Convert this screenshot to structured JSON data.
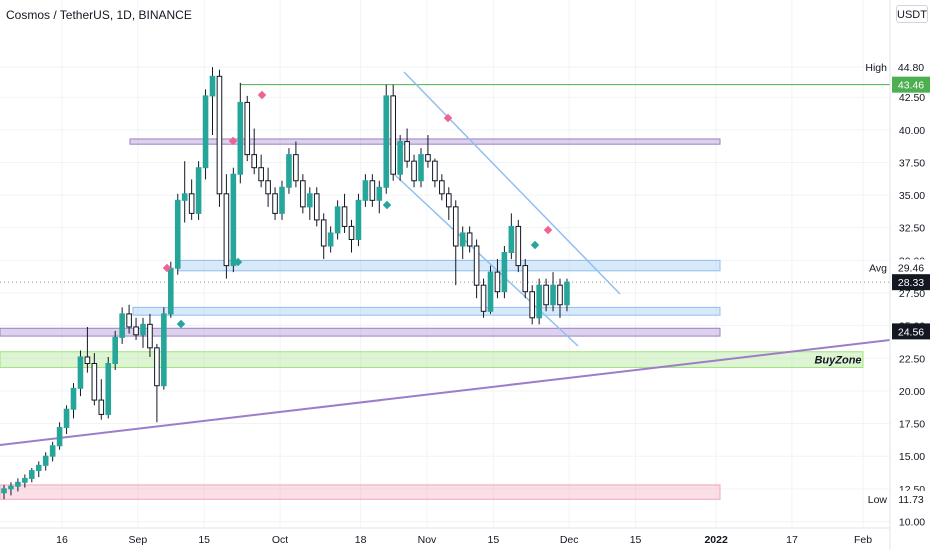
{
  "header": {
    "title": "Cosmos / TetherUS, 1D, BINANCE",
    "currency": "USDT"
  },
  "chart_data": {
    "type": "candlestick",
    "ylim": [
      9.5,
      47.8
    ],
    "y_ticks": [
      "10.00",
      "12.50",
      "15.00",
      "17.50",
      "20.00",
      "22.50",
      "25.00",
      "27.50",
      "30.00",
      "32.50",
      "35.00",
      "37.50",
      "40.00",
      "42.50",
      "44.80"
    ],
    "x_ticks": [
      "16",
      "Sep",
      "15",
      "Oct",
      "18",
      "Nov",
      "15",
      "Dec",
      "15",
      "2022",
      "17",
      "Feb"
    ],
    "x_tick_dates": [
      "2021-08-16",
      "2021-09-01",
      "2021-09-15",
      "2021-10-01",
      "2021-10-18",
      "2021-11-01",
      "2021-11-15",
      "2021-12-01",
      "2021-12-15",
      "2022-01-01",
      "2022-01-17",
      "2022-02-01"
    ],
    "markers": [
      {
        "label": "High",
        "value": "44.80"
      },
      {
        "label": "",
        "value": "43.46",
        "color": "#4caf50"
      },
      {
        "label": "Avg",
        "value": "29.46"
      },
      {
        "label": "",
        "value": "28.33",
        "color": "#131722"
      },
      {
        "label": "",
        "value": "24.56",
        "color": "#131722"
      },
      {
        "label": "Low",
        "value": "11.73"
      }
    ],
    "zones": [
      {
        "from": 38.9,
        "to": 39.3,
        "color": "#9c7dc9"
      },
      {
        "from": 29.2,
        "to": 30.0,
        "color": "#90bff0"
      },
      {
        "from": 25.8,
        "to": 26.4,
        "color": "#90bff0"
      },
      {
        "from": 24.2,
        "to": 24.8,
        "color": "#9c7dc9"
      },
      {
        "from": 21.8,
        "to": 23.0,
        "color": "#9fe17e"
      },
      {
        "from": 11.7,
        "to": 12.8,
        "color": "#f4a3b8"
      }
    ],
    "annotation": "BuyZone",
    "series": [
      {
        "ohlc": [
          [
            12.2,
            12.8,
            11.7,
            12.5
          ],
          [
            12.5,
            13.0,
            12.0,
            12.7
          ],
          [
            12.7,
            13.3,
            12.3,
            13.0
          ],
          [
            13.0,
            13.6,
            12.6,
            13.3
          ],
          [
            13.3,
            14.1,
            13.0,
            13.9
          ],
          [
            13.9,
            14.6,
            13.4,
            14.3
          ],
          [
            14.3,
            15.3,
            13.9,
            15.0
          ],
          [
            15.0,
            16.1,
            14.6,
            15.8
          ],
          [
            15.8,
            17.6,
            15.5,
            17.2
          ],
          [
            17.2,
            18.9,
            16.7,
            18.6
          ],
          [
            18.6,
            20.6,
            17.9,
            20.2
          ],
          [
            20.2,
            23.1,
            19.6,
            22.6
          ],
          [
            22.6,
            24.9,
            21.4,
            22.1
          ],
          [
            22.1,
            22.9,
            18.9,
            19.3
          ],
          [
            19.3,
            20.9,
            17.8,
            18.2
          ],
          [
            18.2,
            22.6,
            17.9,
            22.1
          ],
          [
            22.1,
            24.6,
            21.6,
            24.1
          ],
          [
            24.1,
            26.4,
            23.6,
            25.9
          ],
          [
            25.9,
            26.6,
            24.4,
            24.9
          ],
          [
            24.9,
            25.6,
            23.9,
            24.3
          ],
          [
            24.3,
            25.6,
            23.3,
            25.1
          ],
          [
            25.1,
            25.9,
            22.6,
            23.3
          ],
          [
            23.3,
            23.6,
            17.6,
            20.4
          ],
          [
            20.4,
            26.4,
            20.1,
            25.9
          ],
          [
            25.9,
            29.9,
            25.6,
            29.4
          ],
          [
            29.4,
            35.1,
            28.9,
            34.6
          ],
          [
            34.6,
            37.6,
            32.9,
            35.1
          ],
          [
            35.1,
            36.2,
            33.1,
            33.6
          ],
          [
            33.6,
            37.6,
            33.1,
            37.1
          ],
          [
            37.1,
            43.1,
            36.2,
            42.6
          ],
          [
            42.6,
            44.8,
            39.6,
            44.1
          ],
          [
            44.1,
            44.6,
            34.1,
            35.1
          ],
          [
            35.1,
            36.6,
            28.6,
            29.6
          ],
          [
            29.6,
            37.1,
            29.1,
            36.6
          ],
          [
            36.6,
            43.6,
            35.9,
            42.1
          ],
          [
            42.1,
            42.6,
            37.6,
            38.1
          ],
          [
            38.1,
            40.1,
            36.6,
            37.1
          ],
          [
            37.1,
            38.1,
            35.6,
            36.1
          ],
          [
            36.1,
            37.1,
            34.1,
            35.1
          ],
          [
            35.1,
            35.6,
            33.1,
            33.6
          ],
          [
            33.6,
            36.1,
            33.1,
            35.6
          ],
          [
            35.6,
            38.6,
            35.1,
            38.1
          ],
          [
            38.1,
            39.1,
            35.6,
            36.1
          ],
          [
            36.1,
            36.6,
            33.6,
            34.1
          ],
          [
            34.1,
            35.6,
            33.1,
            35.1
          ],
          [
            35.1,
            35.6,
            32.6,
            33.1
          ],
          [
            33.1,
            33.6,
            30.1,
            31.1
          ],
          [
            31.1,
            32.6,
            30.6,
            32.1
          ],
          [
            32.1,
            34.6,
            31.6,
            34.1
          ],
          [
            34.1,
            35.1,
            32.1,
            32.6
          ],
          [
            32.6,
            33.1,
            30.6,
            31.6
          ],
          [
            31.6,
            35.1,
            31.1,
            34.6
          ],
          [
            34.6,
            36.6,
            34.1,
            36.1
          ],
          [
            36.1,
            36.6,
            34.1,
            34.6
          ],
          [
            34.6,
            36.1,
            33.6,
            35.6
          ],
          [
            35.6,
            43.46,
            35.1,
            42.6
          ],
          [
            42.6,
            43.46,
            36.1,
            36.6
          ],
          [
            36.6,
            39.6,
            36.1,
            39.1
          ],
          [
            39.1,
            40.1,
            37.1,
            37.6
          ],
          [
            37.6,
            38.1,
            35.6,
            36.1
          ],
          [
            36.1,
            38.6,
            35.6,
            38.1
          ],
          [
            38.1,
            39.6,
            37.1,
            37.6
          ],
          [
            37.6,
            37.8,
            35.6,
            36.1
          ],
          [
            36.1,
            36.6,
            34.6,
            35.1
          ],
          [
            35.1,
            35.6,
            33.1,
            34.1
          ],
          [
            34.1,
            34.6,
            28.1,
            31.1
          ],
          [
            31.1,
            32.6,
            30.1,
            32.1
          ],
          [
            32.1,
            32.6,
            30.6,
            31.1
          ],
          [
            31.1,
            31.6,
            27.1,
            28.1
          ],
          [
            28.1,
            28.6,
            25.6,
            26.1
          ],
          [
            26.1,
            29.6,
            25.9,
            29.1
          ],
          [
            29.1,
            30.1,
            27.1,
            27.6
          ],
          [
            27.6,
            31.1,
            27.1,
            30.6
          ],
          [
            30.6,
            33.6,
            30.1,
            32.6
          ],
          [
            32.6,
            33.1,
            29.1,
            29.6
          ],
          [
            29.6,
            30.1,
            27.1,
            27.6
          ],
          [
            27.6,
            28.1,
            25.1,
            25.6
          ],
          [
            25.6,
            28.6,
            25.1,
            28.1
          ],
          [
            28.1,
            28.6,
            26.1,
            26.6
          ],
          [
            26.6,
            29.1,
            26.1,
            28.1
          ],
          [
            28.1,
            28.6,
            25.6,
            26.6
          ],
          [
            26.6,
            28.6,
            26.1,
            28.33
          ]
        ]
      }
    ]
  }
}
